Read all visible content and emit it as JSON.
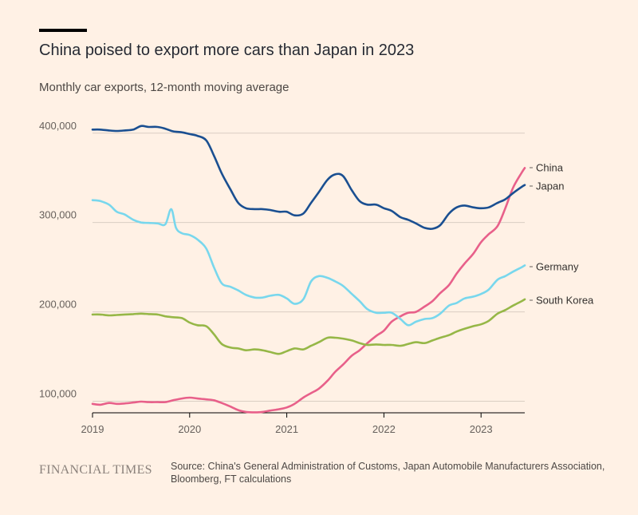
{
  "title": "China poised to export more cars than Japan in 2023",
  "subtitle": "Monthly car exports, 12-month moving average",
  "footer": {
    "logo": "FINANCIAL TIMES",
    "source": "Source: China's General Administration of Customs, Japan Automobile Manufacturers Association, Bloomberg, FT calculations"
  },
  "colors": {
    "background": "#fff1e5",
    "grid": "#d9cec3",
    "text": "#33302e"
  },
  "chart_data": {
    "type": "line",
    "title": "China poised to export more cars than Japan in 2023",
    "subtitle": "Monthly car exports, 12-month moving average",
    "xlabel": "",
    "ylabel": "",
    "xlim": [
      2019.0,
      2023.45
    ],
    "ylim": [
      87000,
      415000
    ],
    "x_ticks": [
      2019,
      2020,
      2021,
      2022,
      2023
    ],
    "x_tick_labels": [
      "2019",
      "2020",
      "2021",
      "2022",
      "2023"
    ],
    "y_ticks": [
      100000,
      200000,
      300000,
      400000
    ],
    "y_tick_labels": [
      "100,000",
      "200,000",
      "300,000",
      "400,000"
    ],
    "grid": true,
    "legend": "direct labels at right end of lines",
    "series": [
      {
        "name": "China",
        "color": "#e8608a",
        "points": [
          [
            2019.0,
            97000
          ],
          [
            2019.08,
            96000
          ],
          [
            2019.17,
            98000
          ],
          [
            2019.25,
            97000
          ],
          [
            2019.33,
            97500
          ],
          [
            2019.42,
            98500
          ],
          [
            2019.5,
            99500
          ],
          [
            2019.58,
            99000
          ],
          [
            2019.67,
            99000
          ],
          [
            2019.75,
            99000
          ],
          [
            2019.83,
            101000
          ],
          [
            2019.92,
            103000
          ],
          [
            2020.0,
            104000
          ],
          [
            2020.08,
            103000
          ],
          [
            2020.17,
            102000
          ],
          [
            2020.25,
            101000
          ],
          [
            2020.33,
            98000
          ],
          [
            2020.42,
            94000
          ],
          [
            2020.5,
            90000
          ],
          [
            2020.58,
            88000
          ],
          [
            2020.67,
            87500
          ],
          [
            2020.75,
            88000
          ],
          [
            2020.83,
            89500
          ],
          [
            2020.92,
            91000
          ],
          [
            2021.0,
            93000
          ],
          [
            2021.08,
            97000
          ],
          [
            2021.17,
            104000
          ],
          [
            2021.25,
            109000
          ],
          [
            2021.33,
            114000
          ],
          [
            2021.42,
            123000
          ],
          [
            2021.5,
            133000
          ],
          [
            2021.58,
            141000
          ],
          [
            2021.67,
            151000
          ],
          [
            2021.75,
            157000
          ],
          [
            2021.83,
            165000
          ],
          [
            2021.92,
            173000
          ],
          [
            2022.0,
            179000
          ],
          [
            2022.08,
            189000
          ],
          [
            2022.17,
            195000
          ],
          [
            2022.25,
            199000
          ],
          [
            2022.33,
            200000
          ],
          [
            2022.42,
            206000
          ],
          [
            2022.5,
            212000
          ],
          [
            2022.58,
            221000
          ],
          [
            2022.67,
            230000
          ],
          [
            2022.75,
            243000
          ],
          [
            2022.83,
            254000
          ],
          [
            2022.92,
            265000
          ],
          [
            2023.0,
            278000
          ],
          [
            2023.08,
            287000
          ],
          [
            2023.17,
            296000
          ],
          [
            2023.25,
            316000
          ],
          [
            2023.33,
            339000
          ],
          [
            2023.42,
            356000
          ],
          [
            2023.45,
            361000
          ]
        ]
      },
      {
        "name": "Japan",
        "color": "#1a4f91",
        "points": [
          [
            2019.0,
            404000
          ],
          [
            2019.08,
            404000
          ],
          [
            2019.17,
            403000
          ],
          [
            2019.25,
            402500
          ],
          [
            2019.33,
            403000
          ],
          [
            2019.42,
            404000
          ],
          [
            2019.5,
            408000
          ],
          [
            2019.58,
            407000
          ],
          [
            2019.67,
            407000
          ],
          [
            2019.75,
            405000
          ],
          [
            2019.83,
            402000
          ],
          [
            2019.92,
            401000
          ],
          [
            2020.0,
            399000
          ],
          [
            2020.08,
            397000
          ],
          [
            2020.17,
            392000
          ],
          [
            2020.25,
            375000
          ],
          [
            2020.33,
            355000
          ],
          [
            2020.42,
            337000
          ],
          [
            2020.5,
            322000
          ],
          [
            2020.58,
            316000
          ],
          [
            2020.67,
            315000
          ],
          [
            2020.75,
            315000
          ],
          [
            2020.83,
            314000
          ],
          [
            2020.92,
            312000
          ],
          [
            2021.0,
            312000
          ],
          [
            2021.08,
            308000
          ],
          [
            2021.17,
            310000
          ],
          [
            2021.25,
            322000
          ],
          [
            2021.33,
            334000
          ],
          [
            2021.42,
            348000
          ],
          [
            2021.5,
            354000
          ],
          [
            2021.58,
            352000
          ],
          [
            2021.67,
            336000
          ],
          [
            2021.75,
            324000
          ],
          [
            2021.83,
            320000
          ],
          [
            2021.92,
            320000
          ],
          [
            2022.0,
            316000
          ],
          [
            2022.08,
            313000
          ],
          [
            2022.17,
            306000
          ],
          [
            2022.25,
            303000
          ],
          [
            2022.33,
            299000
          ],
          [
            2022.42,
            294000
          ],
          [
            2022.5,
            293000
          ],
          [
            2022.58,
            297000
          ],
          [
            2022.67,
            310000
          ],
          [
            2022.75,
            317000
          ],
          [
            2022.83,
            319000
          ],
          [
            2022.92,
            317000
          ],
          [
            2023.0,
            316000
          ],
          [
            2023.08,
            317000
          ],
          [
            2023.17,
            322000
          ],
          [
            2023.25,
            326000
          ],
          [
            2023.33,
            333000
          ],
          [
            2023.42,
            340000
          ],
          [
            2023.45,
            342000
          ]
        ]
      },
      {
        "name": "Germany",
        "color": "#78d7ed",
        "points": [
          [
            2019.0,
            325000
          ],
          [
            2019.08,
            324000
          ],
          [
            2019.17,
            320000
          ],
          [
            2019.25,
            312000
          ],
          [
            2019.33,
            309000
          ],
          [
            2019.42,
            303000
          ],
          [
            2019.5,
            300000
          ],
          [
            2019.58,
            299500
          ],
          [
            2019.67,
            299000
          ],
          [
            2019.75,
            298000
          ],
          [
            2019.81,
            315000
          ],
          [
            2019.86,
            294000
          ],
          [
            2019.92,
            288000
          ],
          [
            2020.0,
            286000
          ],
          [
            2020.08,
            281000
          ],
          [
            2020.17,
            271000
          ],
          [
            2020.25,
            250000
          ],
          [
            2020.33,
            232000
          ],
          [
            2020.42,
            228000
          ],
          [
            2020.5,
            224000
          ],
          [
            2020.58,
            219000
          ],
          [
            2020.67,
            216000
          ],
          [
            2020.75,
            216000
          ],
          [
            2020.83,
            218000
          ],
          [
            2020.92,
            219000
          ],
          [
            2021.0,
            215000
          ],
          [
            2021.08,
            209000
          ],
          [
            2021.17,
            214000
          ],
          [
            2021.25,
            234000
          ],
          [
            2021.33,
            240000
          ],
          [
            2021.42,
            238000
          ],
          [
            2021.5,
            234000
          ],
          [
            2021.58,
            229000
          ],
          [
            2021.67,
            220000
          ],
          [
            2021.75,
            212000
          ],
          [
            2021.83,
            203000
          ],
          [
            2021.92,
            199000
          ],
          [
            2022.0,
            199000
          ],
          [
            2022.08,
            199000
          ],
          [
            2022.17,
            192000
          ],
          [
            2022.25,
            185000
          ],
          [
            2022.33,
            189000
          ],
          [
            2022.42,
            192000
          ],
          [
            2022.5,
            193000
          ],
          [
            2022.58,
            198000
          ],
          [
            2022.67,
            207000
          ],
          [
            2022.75,
            210000
          ],
          [
            2022.83,
            215000
          ],
          [
            2022.92,
            217000
          ],
          [
            2023.0,
            220000
          ],
          [
            2023.08,
            225000
          ],
          [
            2023.17,
            236000
          ],
          [
            2023.25,
            240000
          ],
          [
            2023.33,
            245000
          ],
          [
            2023.42,
            250000
          ],
          [
            2023.45,
            252000
          ]
        ]
      },
      {
        "name": "South Korea",
        "color": "#96b747",
        "points": [
          [
            2019.0,
            197000
          ],
          [
            2019.08,
            197000
          ],
          [
            2019.17,
            196000
          ],
          [
            2019.25,
            196500
          ],
          [
            2019.33,
            197000
          ],
          [
            2019.42,
            197500
          ],
          [
            2019.5,
            198000
          ],
          [
            2019.58,
            197500
          ],
          [
            2019.67,
            197000
          ],
          [
            2019.75,
            195000
          ],
          [
            2019.83,
            194000
          ],
          [
            2019.92,
            193000
          ],
          [
            2020.0,
            188000
          ],
          [
            2020.08,
            185000
          ],
          [
            2020.17,
            184000
          ],
          [
            2020.25,
            175000
          ],
          [
            2020.33,
            164000
          ],
          [
            2020.42,
            160000
          ],
          [
            2020.5,
            159000
          ],
          [
            2020.58,
            157000
          ],
          [
            2020.67,
            158000
          ],
          [
            2020.75,
            157000
          ],
          [
            2020.83,
            155000
          ],
          [
            2020.92,
            153000
          ],
          [
            2021.0,
            156000
          ],
          [
            2021.08,
            159000
          ],
          [
            2021.17,
            158000
          ],
          [
            2021.25,
            162000
          ],
          [
            2021.33,
            166000
          ],
          [
            2021.42,
            171000
          ],
          [
            2021.5,
            171000
          ],
          [
            2021.58,
            170000
          ],
          [
            2021.67,
            168000
          ],
          [
            2021.75,
            165000
          ],
          [
            2021.83,
            163000
          ],
          [
            2021.92,
            163500
          ],
          [
            2022.0,
            163000
          ],
          [
            2022.08,
            163000
          ],
          [
            2022.17,
            162000
          ],
          [
            2022.25,
            164000
          ],
          [
            2022.33,
            166000
          ],
          [
            2022.42,
            165000
          ],
          [
            2022.5,
            168000
          ],
          [
            2022.58,
            171000
          ],
          [
            2022.67,
            174000
          ],
          [
            2022.75,
            178000
          ],
          [
            2022.83,
            181000
          ],
          [
            2022.92,
            184000
          ],
          [
            2023.0,
            186000
          ],
          [
            2023.08,
            190000
          ],
          [
            2023.17,
            198000
          ],
          [
            2023.25,
            202000
          ],
          [
            2023.33,
            207000
          ],
          [
            2023.42,
            212000
          ],
          [
            2023.45,
            214000
          ]
        ]
      }
    ]
  }
}
